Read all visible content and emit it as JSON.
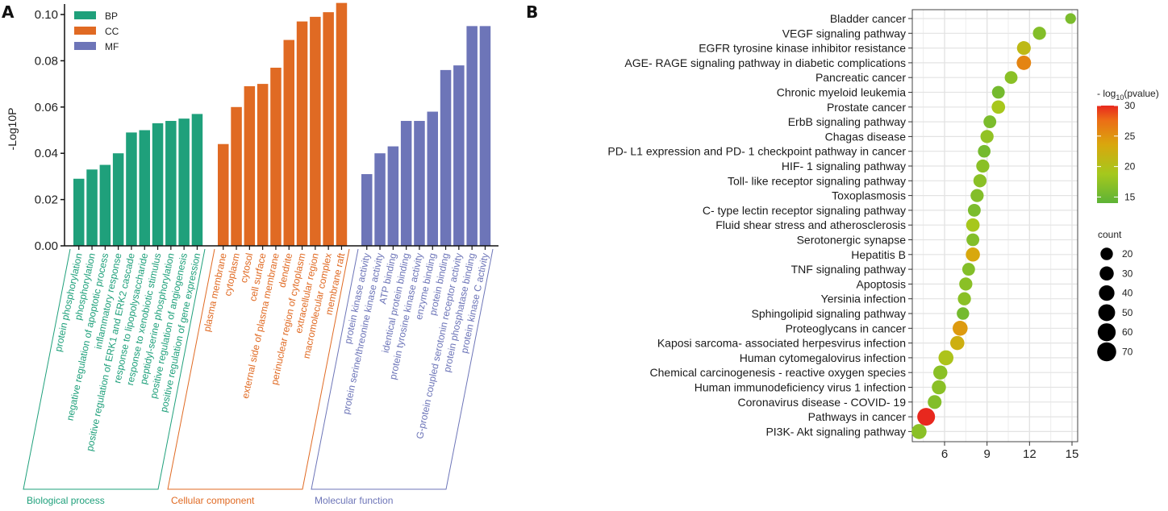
{
  "chart_data": [
    {
      "panel": "A",
      "type": "bar",
      "title": "",
      "xlabel": "",
      "ylabel": "-Log10P",
      "ylim": [
        0,
        0.1
      ],
      "yticks": [
        "0.00",
        "0.02",
        "0.04",
        "0.06",
        "0.08",
        "0.10"
      ],
      "ytick_values": [
        0,
        0.02,
        0.04,
        0.06,
        0.08,
        0.1
      ],
      "legend": {
        "placement": "top-left",
        "entries": [
          {
            "key": "BP",
            "color": "#1fa07b"
          },
          {
            "key": "CC",
            "color": "#e06a23"
          },
          {
            "key": "MF",
            "color": "#6d75b8"
          }
        ]
      },
      "groups": [
        {
          "key": "BP",
          "name": "Biological process",
          "color": "#1fa07b",
          "categories": [
            "protein phosphorylation",
            "phosphorylation",
            "negative regulation of apoptotic process",
            "inflammatory response",
            "positive regulation of ERK1 and ERK2 cascade",
            "response to lipopolysaccharide",
            "response to xenobiotic stimulus",
            "peptidyl-serine phosphorylation",
            "positive regulation of angiogenesis",
            "positive regulation of gene expression"
          ],
          "values": [
            0.029,
            0.033,
            0.035,
            0.04,
            0.049,
            0.05,
            0.053,
            0.054,
            0.055,
            0.057
          ]
        },
        {
          "key": "CC",
          "name": "Cellular component",
          "color": "#e06a23",
          "categories": [
            "plasma membrane",
            "cytoplasm",
            "cytosol",
            "cell surface",
            "external side of plasma membrane",
            "dendrite",
            "perinuclear region of cytoplasm",
            "extracellular region",
            "macromolecular complex",
            "membrane raft"
          ],
          "values": [
            0.044,
            0.06,
            0.069,
            0.07,
            0.077,
            0.089,
            0.097,
            0.099,
            0.101,
            0.105
          ]
        },
        {
          "key": "MF",
          "name": "Molecular function",
          "color": "#6d75b8",
          "categories": [
            "protein kinase activity",
            "protein serine/threonine kinase activity",
            "ATP binding",
            "identical protein binding",
            "protein tyrosine kinase activity",
            "enzyme binding",
            "protein binding",
            "G-protein coupled serotonin receptor activity",
            "protein phosphatase binding",
            "protein kinase C activity"
          ],
          "values": [
            0.031,
            0.04,
            0.043,
            0.054,
            0.054,
            0.058,
            0.076,
            0.078,
            0.095,
            0.095
          ]
        }
      ]
    },
    {
      "panel": "B",
      "type": "scatter",
      "title": "",
      "xlabel": "",
      "ylabel": "",
      "xlim": [
        3.7,
        15.4
      ],
      "xticks": [
        "6",
        "9",
        "12",
        "15"
      ],
      "xtick_values": [
        6,
        9,
        12,
        15
      ],
      "grid": true,
      "color_legend": {
        "title_prefix": "- log",
        "title_sub": "10",
        "title_suffix": "(pvalue)",
        "min": 14,
        "max": 30,
        "ticks": [
          15,
          20,
          25,
          30
        ],
        "colors": [
          "#5db336",
          "#a5c81d",
          "#d9a70d",
          "#ec6d16",
          "#e8281e"
        ]
      },
      "size_legend": {
        "title": "count",
        "values": [
          20,
          30,
          40,
          50,
          60,
          70
        ]
      },
      "legend_placement": "right",
      "pathways": [
        {
          "name": "Bladder cancer",
          "x": 14.9,
          "pvalue_log": 16,
          "count": 12
        },
        {
          "name": "VEGF signaling pathway",
          "x": 12.7,
          "pvalue_log": 16.5,
          "count": 24
        },
        {
          "name": "EGFR tyrosine kinase inhibitor resistance",
          "x": 11.6,
          "pvalue_log": 21,
          "count": 28
        },
        {
          "name": "AGE- RAGE signaling pathway in diabetic complications",
          "x": 11.6,
          "pvalue_log": 26,
          "count": 32
        },
        {
          "name": "Pancreatic cancer",
          "x": 10.7,
          "pvalue_log": 17,
          "count": 22
        },
        {
          "name": "Chronic myeloid leukemia",
          "x": 9.8,
          "pvalue_log": 15.5,
          "count": 22
        },
        {
          "name": "Prostate cancer",
          "x": 9.8,
          "pvalue_log": 19,
          "count": 26
        },
        {
          "name": "ErbB signaling pathway",
          "x": 9.2,
          "pvalue_log": 16,
          "count": 22
        },
        {
          "name": "Chagas disease",
          "x": 9.0,
          "pvalue_log": 17.5,
          "count": 24
        },
        {
          "name": "PD- L1 expression and PD- 1 checkpoint pathway in cancer",
          "x": 8.8,
          "pvalue_log": 15.5,
          "count": 21
        },
        {
          "name": "HIF- 1 signaling pathway",
          "x": 8.7,
          "pvalue_log": 17,
          "count": 24
        },
        {
          "name": "Toll- like receptor signaling pathway",
          "x": 8.5,
          "pvalue_log": 17,
          "count": 24
        },
        {
          "name": "Toxoplasmosis",
          "x": 8.3,
          "pvalue_log": 16.5,
          "count": 24
        },
        {
          "name": "C- type lectin receptor signaling pathway",
          "x": 8.1,
          "pvalue_log": 16,
          "count": 22
        },
        {
          "name": "Fluid shear stress and atherosclerosis",
          "x": 8.0,
          "pvalue_log": 19,
          "count": 26
        },
        {
          "name": "Serotonergic synapse",
          "x": 8.0,
          "pvalue_log": 16.5,
          "count": 22
        },
        {
          "name": "Hepatitis B",
          "x": 8.0,
          "pvalue_log": 23.5,
          "count": 30
        },
        {
          "name": "TNF signaling pathway",
          "x": 7.7,
          "pvalue_log": 16.5,
          "count": 22
        },
        {
          "name": "Apoptosis",
          "x": 7.5,
          "pvalue_log": 17,
          "count": 24
        },
        {
          "name": "Yersinia infection",
          "x": 7.4,
          "pvalue_log": 17,
          "count": 24
        },
        {
          "name": "Sphingolipid signaling pathway",
          "x": 7.3,
          "pvalue_log": 15.5,
          "count": 20
        },
        {
          "name": "Proteoglycans in cancer",
          "x": 7.1,
          "pvalue_log": 24.5,
          "count": 36
        },
        {
          "name": "Kaposi sarcoma- associated herpesvirus infection",
          "x": 6.9,
          "pvalue_log": 22.5,
          "count": 30
        },
        {
          "name": "Human cytomegalovirus infection",
          "x": 6.1,
          "pvalue_log": 19.5,
          "count": 36
        },
        {
          "name": "Chemical carcinogenesis -  reactive oxygen species",
          "x": 5.7,
          "pvalue_log": 17,
          "count": 30
        },
        {
          "name": "Human immunodeficiency virus 1 infection",
          "x": 5.6,
          "pvalue_log": 17,
          "count": 30
        },
        {
          "name": "Coronavirus disease -  COVID- 19",
          "x": 5.3,
          "pvalue_log": 16.5,
          "count": 28
        },
        {
          "name": "Pathways in cancer",
          "x": 4.7,
          "pvalue_log": 30,
          "count": 58
        },
        {
          "name": "PI3K- Akt signaling pathway",
          "x": 4.2,
          "pvalue_log": 17,
          "count": 36
        }
      ]
    }
  ],
  "panel_letters": {
    "a": "A",
    "b": "B"
  }
}
